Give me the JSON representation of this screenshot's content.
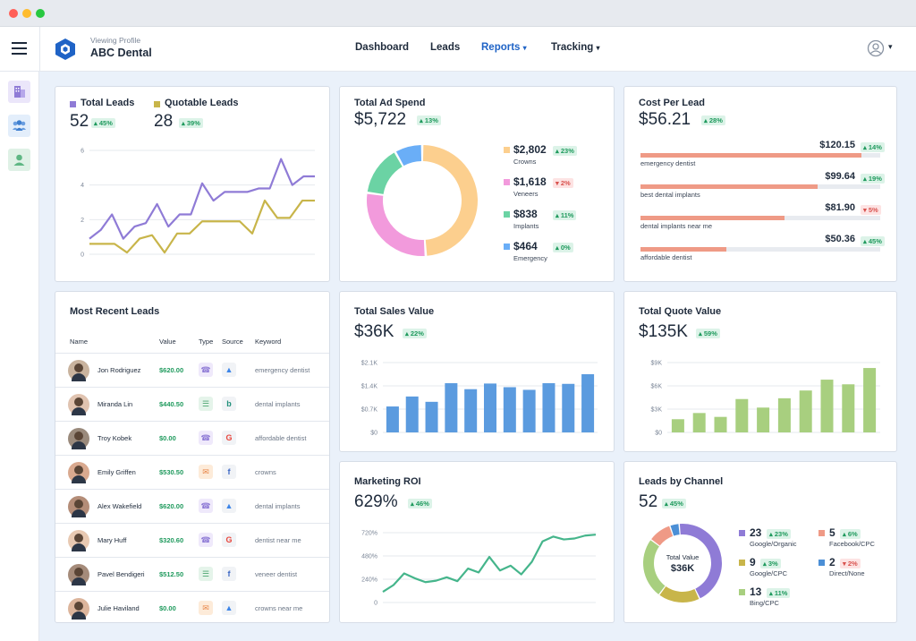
{
  "header": {
    "viewing_label": "Viewing Profile",
    "profile_name": "ABC Dental",
    "nav": {
      "dashboard": "Dashboard",
      "leads": "Leads",
      "reports": "Reports",
      "tracking": "Tracking"
    }
  },
  "colors": {
    "accent": "#1f63c6",
    "purple": "#8f7bd6",
    "gold": "#c8b54a",
    "blue": "#5b9bdf",
    "green": "#a8cf7f",
    "teal": "#45b58b"
  },
  "leads_chart": {
    "total_label": "Total Leads",
    "total_value": "52",
    "total_change": "45%",
    "quotable_label": "Quotable Leads",
    "quotable_value": "28",
    "quotable_change": "39%",
    "chart_data": {
      "type": "line",
      "yticks": [
        "6",
        "4",
        "2",
        "0"
      ],
      "ylim": [
        0,
        6
      ],
      "series": [
        {
          "name": "Total Leads",
          "values": [
            0.9,
            1.4,
            2.3,
            0.9,
            1.6,
            1.8,
            2.9,
            1.6,
            2.3,
            2.3,
            4.1,
            3.1,
            3.6,
            3.6,
            3.6,
            3.8,
            3.8,
            5.5,
            4.0,
            4.5,
            4.5
          ]
        },
        {
          "name": "Quotable Leads",
          "values": [
            0.6,
            0.6,
            0.6,
            0.1,
            0.9,
            1.1,
            0.1,
            1.2,
            1.2,
            1.9,
            1.9,
            1.9,
            1.9,
            1.2,
            3.1,
            2.1,
            2.1,
            3.1,
            3.1
          ]
        }
      ]
    }
  },
  "ad_spend": {
    "title": "Total Ad Spend",
    "value": "$5,722",
    "change": "13%",
    "chart_data": {
      "type": "pie",
      "slices": [
        {
          "amount": "$2,802",
          "label": "Crowns",
          "change": "23%",
          "trend": "up",
          "value": 2802,
          "color": "#fccf8e"
        },
        {
          "amount": "$1,618",
          "label": "Veneers",
          "change": "2%",
          "trend": "down",
          "value": 1618,
          "color": "#f29adc"
        },
        {
          "amount": "$838",
          "label": "Implants",
          "change": "11%",
          "trend": "up",
          "value": 838,
          "color": "#6bd3a4"
        },
        {
          "amount": "$464",
          "label": "Emergency",
          "change": "0%",
          "trend": "up",
          "value": 464,
          "color": "#6aaef7"
        }
      ]
    }
  },
  "cost_per_lead": {
    "title": "Cost Per Lead",
    "value": "$56.21",
    "change": "28%",
    "items": [
      {
        "amount": "$120.15",
        "change": "14%",
        "trend": "up",
        "label": "emergency dentist",
        "fill": 0.92
      },
      {
        "amount": "$99.64",
        "change": "19%",
        "trend": "up",
        "label": "best dental implants",
        "fill": 0.74
      },
      {
        "amount": "$81.90",
        "change": "5%",
        "trend": "down",
        "label": "dental implants near me",
        "fill": 0.6
      },
      {
        "amount": "$50.36",
        "change": "45%",
        "trend": "up",
        "label": "affordable dentist",
        "fill": 0.36
      }
    ]
  },
  "recent_leads": {
    "title": "Most Recent Leads",
    "columns": {
      "name": "Name",
      "value": "Value",
      "type": "Type",
      "source": "Source",
      "keyword": "Keyword"
    },
    "rows": [
      {
        "name": "Jon Rodriguez",
        "value": "$620.00",
        "type": "phone",
        "source": "ads",
        "keyword": "emergency dentist"
      },
      {
        "name": "Miranda Lin",
        "value": "$440.50",
        "type": "form",
        "source": "bing",
        "keyword": "dental implants"
      },
      {
        "name": "Troy Kobek",
        "value": "$0.00",
        "type": "phone",
        "source": "google",
        "keyword": "affordable dentist"
      },
      {
        "name": "Emily Griffen",
        "value": "$530.50",
        "type": "chat",
        "source": "facebook",
        "keyword": "crowns"
      },
      {
        "name": "Alex Wakefield",
        "value": "$620.00",
        "type": "phone",
        "source": "ads",
        "keyword": "dental implants"
      },
      {
        "name": "Mary Huff",
        "value": "$320.60",
        "type": "phone",
        "source": "google",
        "keyword": "dentist near me"
      },
      {
        "name": "Pavel Bendigeri",
        "value": "$512.50",
        "type": "form",
        "source": "facebook",
        "keyword": "veneer dentist"
      },
      {
        "name": "Julie Haviland",
        "value": "$0.00",
        "type": "chat",
        "source": "ads",
        "keyword": "crowns near me"
      }
    ]
  },
  "sales_value": {
    "title": "Total Sales Value",
    "value": "$36K",
    "change": "22%",
    "chart_data": {
      "type": "bar",
      "yticks": [
        "$2.1K",
        "$1.4K",
        "$0.7K",
        "$0"
      ],
      "ylim": [
        0,
        2100
      ],
      "values": [
        780,
        1080,
        920,
        1480,
        1300,
        1470,
        1360,
        1280,
        1480,
        1460,
        1750
      ]
    }
  },
  "quote_value": {
    "title": "Total Quote Value",
    "value": "$135K",
    "change": "59%",
    "chart_data": {
      "type": "bar",
      "yticks": [
        "$9K",
        "$6K",
        "$3K",
        "$0"
      ],
      "ylim": [
        0,
        9000
      ],
      "values": [
        1700,
        2500,
        2000,
        4300,
        3200,
        4400,
        5400,
        6800,
        6200,
        8300
      ]
    }
  },
  "roi": {
    "title": "Marketing ROI",
    "value": "629%",
    "change": "46%",
    "chart_data": {
      "type": "line",
      "yticks": [
        "720%",
        "480%",
        "240%",
        "0"
      ],
      "ylim": [
        0,
        720
      ],
      "values": [
        110,
        180,
        300,
        250,
        210,
        225,
        260,
        220,
        350,
        310,
        470,
        330,
        380,
        290,
        420,
        630,
        680,
        650,
        660,
        690,
        700
      ]
    }
  },
  "channels": {
    "title": "Leads by Channel",
    "value": "52",
    "change": "45%",
    "center_label": "Total Value",
    "center_value": "$36K",
    "chart_data": {
      "type": "pie",
      "slices": [
        {
          "count": "23",
          "label": "Google/Organic",
          "change": "23%",
          "trend": "up",
          "value": 23,
          "color": "#8f7bd6"
        },
        {
          "count": "9",
          "label": "Google/CPC",
          "change": "3%",
          "trend": "up",
          "value": 9,
          "color": "#c8b54a"
        },
        {
          "count": "13",
          "label": "Bing/CPC",
          "change": "11%",
          "trend": "up",
          "value": 13,
          "color": "#a8cf7f"
        },
        {
          "count": "5",
          "label": "Facebook/CPC",
          "change": "6%",
          "trend": "up",
          "value": 5,
          "color": "#ef9a86"
        },
        {
          "count": "2",
          "label": "Direct/None",
          "change": "2%",
          "trend": "down",
          "value": 2,
          "color": "#4b8fd6"
        }
      ]
    }
  }
}
